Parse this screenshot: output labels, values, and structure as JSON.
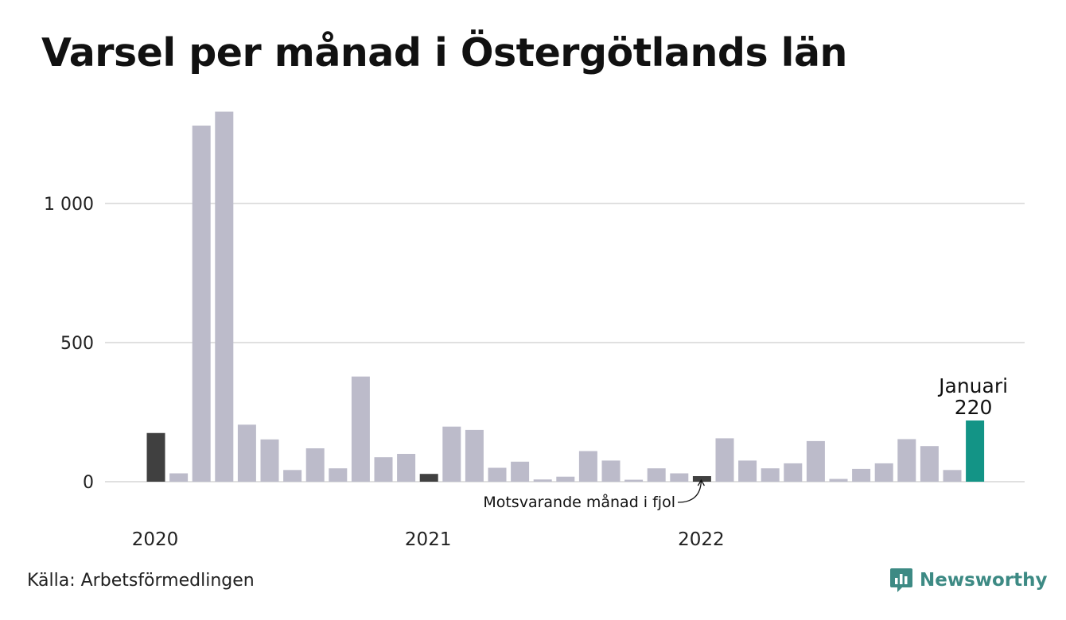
{
  "title": "Varsel per månad i Östergötlands län",
  "source": "Källa: Arbetsförmedlingen",
  "brand": {
    "name": "Newsworthy",
    "icon": "newsworthy-logo-icon"
  },
  "colors": {
    "bar": "#bcbbca",
    "same_month": "#404040",
    "current": "#139486",
    "grid": "#e0e0e0",
    "brand": "#3d8a84"
  },
  "chart_data": {
    "type": "bar",
    "title": "Varsel per månad i Östergötlands län",
    "xlabel": "",
    "ylabel": "",
    "ylim": [
      0,
      1400
    ],
    "yticks": [
      0,
      500,
      1000
    ],
    "ytick_labels": [
      "0",
      "500",
      "1 000"
    ],
    "grid": true,
    "x_year_labels": [
      "2020",
      "2021",
      "2022"
    ],
    "x_year_label_month_index": [
      0,
      12,
      24
    ],
    "values": [
      175,
      30,
      1280,
      1330,
      205,
      152,
      42,
      120,
      48,
      378,
      88,
      100,
      28,
      198,
      186,
      50,
      72,
      8,
      18,
      110,
      76,
      7,
      48,
      30,
      20,
      156,
      76,
      48,
      66,
      146,
      10,
      46,
      66,
      153,
      128,
      42,
      220
    ],
    "same_month_indices": [
      0,
      12,
      24
    ],
    "current_index": 36,
    "annotations": {
      "same_month": "Motsvarande månad i fjol",
      "current_month": "Januari",
      "current_value": "220"
    }
  }
}
